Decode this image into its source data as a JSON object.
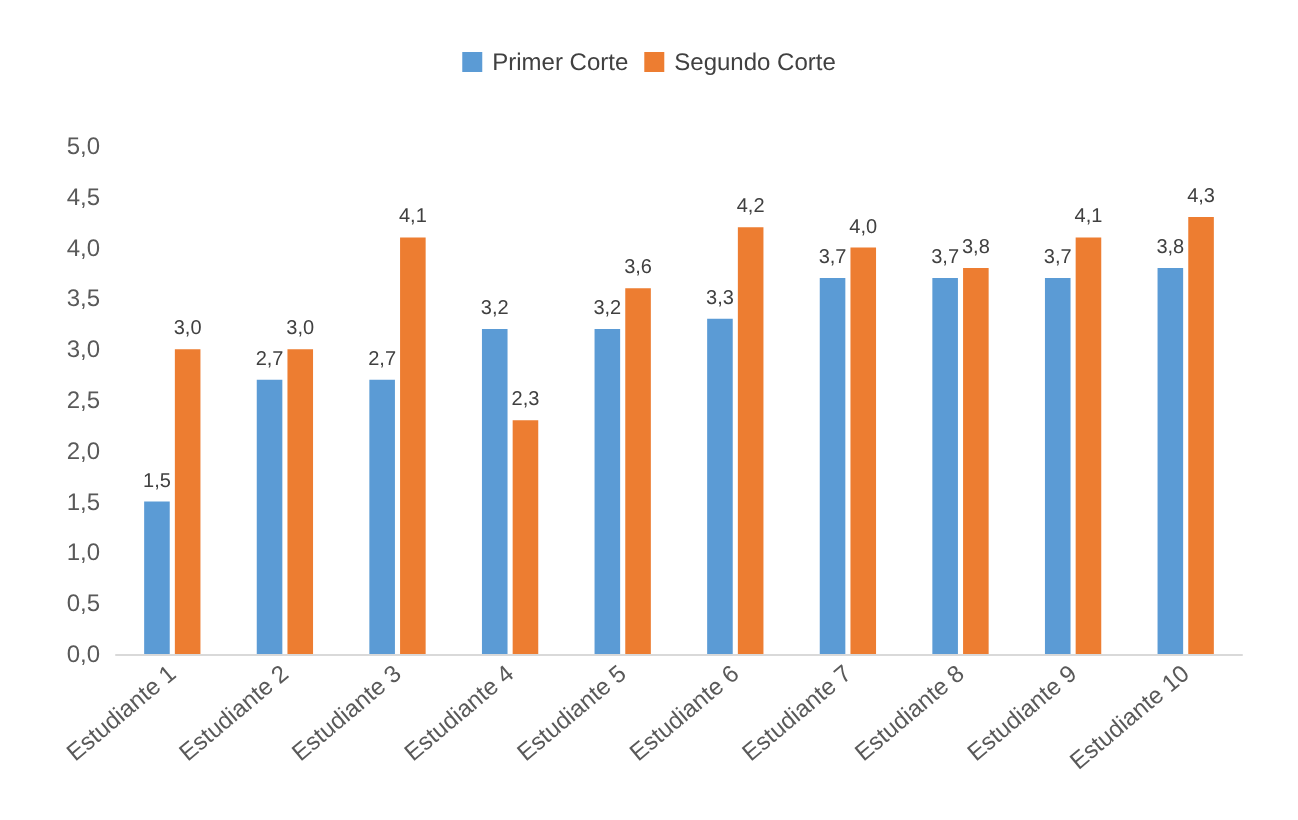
{
  "chart_data": {
    "type": "bar",
    "categories": [
      "Estudiante 1",
      "Estudiante 2",
      "Estudiante 3",
      "Estudiante 4",
      "Estudiante 5",
      "Estudiante 6",
      "Estudiante 7",
      "Estudiante 8",
      "Estudiante 9",
      "Estudiante 10"
    ],
    "series": [
      {
        "name": "Primer Corte",
        "color": "#5b9bd5",
        "values": [
          1.5,
          2.7,
          2.7,
          3.2,
          3.2,
          3.3,
          3.7,
          3.7,
          3.7,
          3.8
        ],
        "value_labels": [
          "1,5",
          "2,7",
          "2,7",
          "3,2",
          "3,2",
          "3,3",
          "3,7",
          "3,7",
          "3,7",
          "3,8"
        ]
      },
      {
        "name": "Segundo Corte",
        "color": "#ed7d31",
        "values": [
          3.0,
          3.0,
          4.1,
          2.3,
          3.6,
          4.2,
          4.0,
          3.8,
          4.1,
          4.3
        ],
        "value_labels": [
          "3,0",
          "3,0",
          "4,1",
          "2,3",
          "3,6",
          "4,2",
          "4,0",
          "3,8",
          "4,1",
          "4,3"
        ]
      }
    ],
    "ylim": [
      0,
      5
    ],
    "yticks": [
      {
        "value": 0,
        "label": "0,0"
      },
      {
        "value": 0.5,
        "label": "0,5"
      },
      {
        "value": 1,
        "label": "1,0"
      },
      {
        "value": 1.5,
        "label": "1,5"
      },
      {
        "value": 2,
        "label": "2,0"
      },
      {
        "value": 2.5,
        "label": "2,5"
      },
      {
        "value": 3,
        "label": "3,0"
      },
      {
        "value": 3.5,
        "label": "3,5"
      },
      {
        "value": 4,
        "label": "4,0"
      },
      {
        "value": 4.5,
        "label": "4,5"
      },
      {
        "value": 5,
        "label": "5,0"
      }
    ],
    "grid": false,
    "legend": "top"
  }
}
